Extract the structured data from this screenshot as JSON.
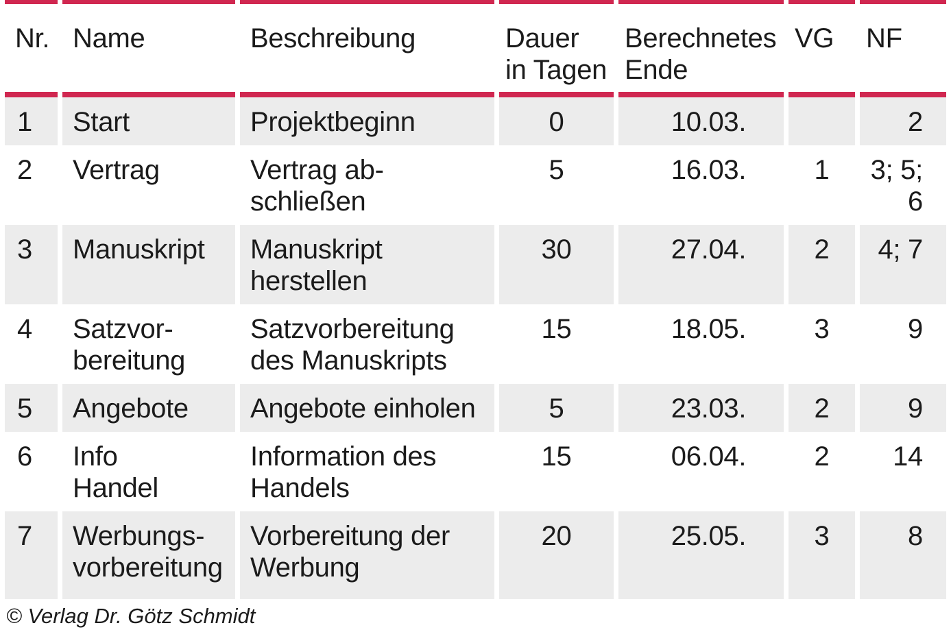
{
  "table": {
    "columns": [
      {
        "key": "nr",
        "label": "Nr."
      },
      {
        "key": "name",
        "label": "Name"
      },
      {
        "key": "beschreibung",
        "label": "Beschreibung"
      },
      {
        "key": "dauer",
        "label": "Dauer\nin Tagen"
      },
      {
        "key": "ende",
        "label": "Berechnetes\nEnde"
      },
      {
        "key": "vg",
        "label": "VG"
      },
      {
        "key": "nf",
        "label": "NF"
      }
    ],
    "rows": [
      {
        "nr": "1",
        "name": "Start",
        "beschreibung": "Projektbeginn",
        "dauer": "0",
        "ende": "10.03.",
        "vg": "",
        "nf": "2"
      },
      {
        "nr": "2",
        "name": "Vertrag",
        "beschreibung": "Vertrag ab-\nschließen",
        "dauer": "5",
        "ende": "16.03.",
        "vg": "1",
        "nf": "3; 5;\n6"
      },
      {
        "nr": "3",
        "name": "Manuskript",
        "beschreibung": "Manuskript\nherstellen",
        "dauer": "30",
        "ende": "27.04.",
        "vg": "2",
        "nf": "4; 7"
      },
      {
        "nr": "4",
        "name": "Satzvor-\nbereitung",
        "beschreibung": "Satzvorbereitung\ndes Manuskripts",
        "dauer": "15",
        "ende": "18.05.",
        "vg": "3",
        "nf": "9"
      },
      {
        "nr": "5",
        "name": "Angebote",
        "beschreibung": "Angebote einholen",
        "dauer": "5",
        "ende": "23.03.",
        "vg": "2",
        "nf": "9"
      },
      {
        "nr": "6",
        "name": "Info\nHandel",
        "beschreibung": "Information des\nHandels",
        "dauer": "15",
        "ende": "06.04.",
        "vg": "2",
        "nf": "14"
      },
      {
        "nr": "7",
        "name": "Werbungs-\nvorbereitung",
        "beschreibung": "Vorbereitung der\nWerbung",
        "dauer": "20",
        "ende": "25.05.",
        "vg": "3",
        "nf": "8"
      }
    ]
  },
  "footer": {
    "copyright": "© Verlag Dr. Götz Schmidt"
  },
  "colors": {
    "accent": "#d02750",
    "row_alt": "#ececec",
    "text": "#1b1b1b",
    "background": "#ffffff"
  }
}
